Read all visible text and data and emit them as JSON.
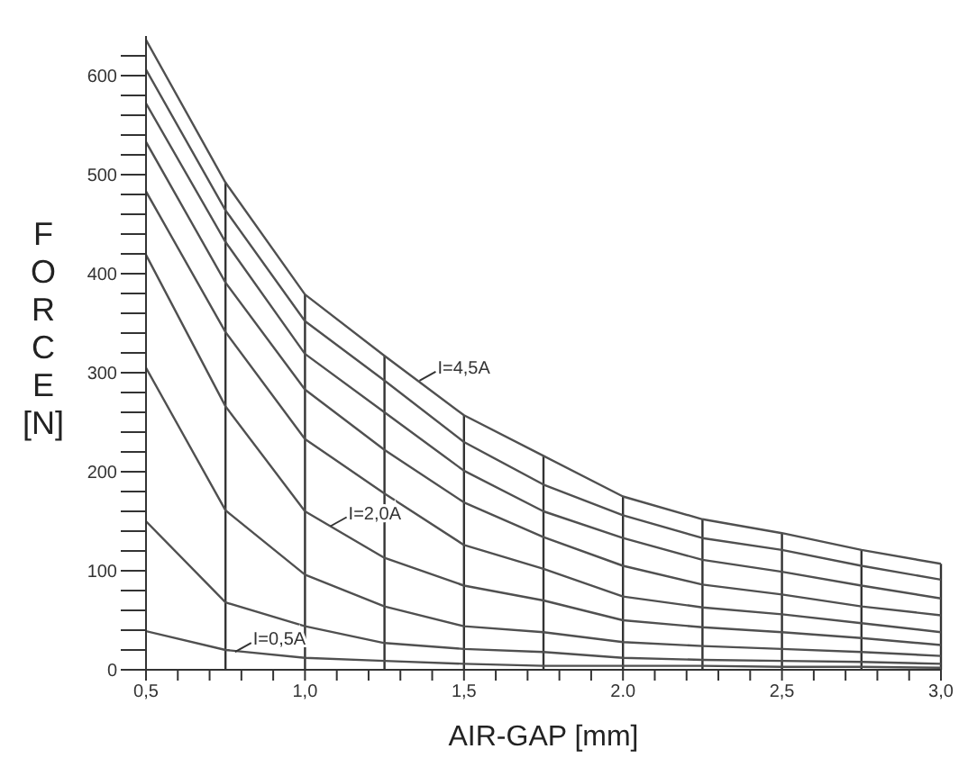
{
  "chart_data": {
    "type": "line",
    "xlabel": "AIR-GAP [mm]",
    "ylabel": "FORCE [N]",
    "x": [
      0.5,
      0.75,
      1.0,
      1.25,
      1.5,
      1.75,
      2.0,
      2.25,
      2.5,
      2.75,
      3.0
    ],
    "series": [
      {
        "color": "#505050",
        "values": [
          636,
          492,
          379,
          317,
          257,
          216,
          175,
          152,
          138,
          121,
          107
        ]
      },
      {
        "color": "#505050",
        "values": [
          606,
          464,
          352,
          292,
          230,
          187,
          156,
          133,
          121,
          105,
          91
        ]
      },
      {
        "color": "#505050",
        "values": [
          572,
          432,
          319,
          260,
          201,
          160,
          133,
          111,
          99,
          85,
          72
        ]
      },
      {
        "color": "#505050",
        "values": [
          533,
          391,
          283,
          222,
          169,
          134,
          105,
          86,
          76,
          64,
          55
        ]
      },
      {
        "color": "#505050",
        "values": [
          483,
          341,
          233,
          178,
          126,
          102,
          74,
          63,
          56,
          47,
          38
        ]
      },
      {
        "color": "#505050",
        "values": [
          419,
          266,
          160,
          113,
          85,
          70,
          50,
          43,
          38,
          32,
          25
        ]
      },
      {
        "color": "#505050",
        "values": [
          305,
          161,
          96,
          64,
          44,
          38,
          28,
          24,
          21,
          18,
          14
        ]
      },
      {
        "color": "#505050",
        "values": [
          150,
          68,
          44,
          27,
          21,
          18,
          12,
          10,
          9,
          8,
          6
        ]
      },
      {
        "color": "#505050",
        "values": [
          39,
          20,
          12,
          9,
          6,
          4,
          4,
          4,
          3,
          3,
          2
        ]
      }
    ],
    "xlim": [
      0.5,
      3.0
    ],
    "xticks": [
      {
        "value": 0.5,
        "label": "0,5"
      },
      {
        "value": 0.6,
        "label": null
      },
      {
        "value": 0.7,
        "label": null
      },
      {
        "value": 0.8,
        "label": null
      },
      {
        "value": 0.9,
        "label": null
      },
      {
        "value": 1.0,
        "label": "1,0"
      },
      {
        "value": 1.1,
        "label": null
      },
      {
        "value": 1.2,
        "label": null
      },
      {
        "value": 1.3,
        "label": null
      },
      {
        "value": 1.4,
        "label": null
      },
      {
        "value": 1.5,
        "label": "1,5"
      },
      {
        "value": 1.6,
        "label": null
      },
      {
        "value": 1.7,
        "label": null
      },
      {
        "value": 1.8,
        "label": null
      },
      {
        "value": 1.9,
        "label": null
      },
      {
        "value": 2.0,
        "label": "2.0"
      },
      {
        "value": 2.1,
        "label": null
      },
      {
        "value": 2.2,
        "label": null
      },
      {
        "value": 2.3,
        "label": null
      },
      {
        "value": 2.4,
        "label": null
      },
      {
        "value": 2.5,
        "label": "2,5"
      },
      {
        "value": 2.6,
        "label": null
      },
      {
        "value": 2.7,
        "label": null
      },
      {
        "value": 2.8,
        "label": null
      },
      {
        "value": 2.9,
        "label": null
      },
      {
        "value": 3.0,
        "label": "3,0"
      }
    ],
    "ylim": [
      0,
      640
    ],
    "yticks": [
      0,
      {
        "value": 20,
        "label": null
      },
      {
        "value": 40,
        "label": null
      },
      {
        "value": 60,
        "label": null
      },
      {
        "value": 80,
        "label": null
      },
      100,
      {
        "value": 120,
        "label": null
      },
      {
        "value": 140,
        "label": null
      },
      {
        "value": 160,
        "label": null
      },
      {
        "value": 180,
        "label": null
      },
      200,
      {
        "value": 220,
        "label": null
      },
      {
        "value": 240,
        "label": null
      },
      {
        "value": 260,
        "label": null
      },
      {
        "value": 280,
        "label": null
      },
      300,
      {
        "value": 320,
        "label": null
      },
      {
        "value": 340,
        "label": null
      },
      {
        "value": 360,
        "label": null
      },
      {
        "value": 380,
        "label": null
      },
      400,
      {
        "value": 420,
        "label": null
      },
      {
        "value": 440,
        "label": null
      },
      {
        "value": 460,
        "label": null
      },
      {
        "value": 480,
        "label": null
      },
      500,
      {
        "value": 520,
        "label": null
      },
      {
        "value": 540,
        "label": null
      },
      {
        "value": 560,
        "label": null
      },
      {
        "value": 580,
        "label": null
      },
      600,
      {
        "value": 620,
        "label": null
      }
    ],
    "ref_lines": [
      {
        "axis": "x",
        "value": 0.75
      },
      {
        "axis": "x",
        "value": 1.0
      },
      {
        "axis": "x",
        "value": 1.25
      },
      {
        "axis": "x",
        "value": 1.5
      },
      {
        "axis": "x",
        "value": 1.75
      },
      {
        "axis": "x",
        "value": 2.0
      },
      {
        "axis": "x",
        "value": 2.25
      },
      {
        "axis": "x",
        "value": 2.5
      },
      {
        "axis": "x",
        "value": 2.75
      },
      {
        "axis": "x",
        "value": 3.0
      }
    ],
    "annotations": [
      {
        "text": "I=0,5A",
        "x": 0.78,
        "y": 18
      },
      {
        "text": "I=2,0A",
        "x": 1.08,
        "y": 145
      },
      {
        "text": "I=4,5A",
        "x": 1.36,
        "y": 292
      }
    ],
    "marker": "none",
    "line_style": "solid"
  }
}
